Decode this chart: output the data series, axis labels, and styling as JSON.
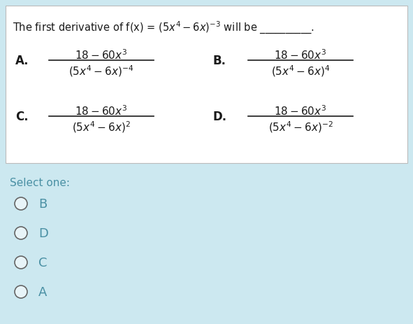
{
  "question_bg": "#ffffff",
  "page_bg": "#cce8f0",
  "border_color": "#bbbbbb",
  "title_plain": "The first derivative of f(x) = ",
  "title_math": "$(5x^4 - 6x)^{-3}$",
  "title_end": " will be __________.",
  "options": [
    {
      "label": "A.",
      "num_math": "$18 - 60x^3$",
      "den_math": "$(5x^4 - 6x)^{-4}$"
    },
    {
      "label": "B.",
      "num_math": "$18 - 60x^3$",
      "den_math": "$(5x^4 - 6x)^{4}$"
    },
    {
      "label": "C.",
      "num_math": "$18 - 60x^3$",
      "den_math": "$(5x^4 - 6x)^{2}$"
    },
    {
      "label": "D.",
      "num_math": "$18 - 60x^3$",
      "den_math": "$(5x^4 - 6x)^{-2}$"
    }
  ],
  "select_one_text": "Select one:",
  "radio_options": [
    "B",
    "D",
    "C",
    "A"
  ],
  "radio_text_color": "#4a90a4",
  "select_color": "#4a90a4",
  "radio_edge_color": "#666666",
  "text_color": "#1a1a1a",
  "label_color": "#1a1a1a",
  "fig_width": 5.91,
  "fig_height": 4.64,
  "dpi": 100
}
